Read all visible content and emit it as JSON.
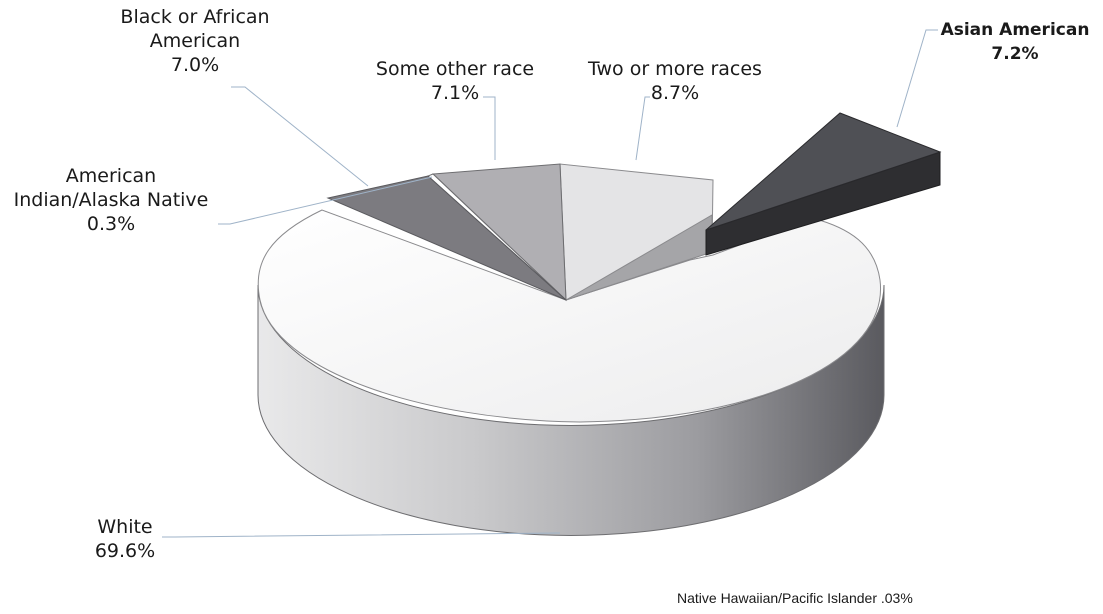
{
  "chart_data": {
    "type": "pie",
    "style": "3d-exploded",
    "slices": [
      {
        "name": "White",
        "value": 69.6,
        "label_value": "69.6%",
        "color": "#f3f3f3"
      },
      {
        "name": "Two or more races",
        "value": 8.7,
        "label_value": "8.7%",
        "color": "#e4e4e6"
      },
      {
        "name": "Some other race",
        "value": 7.1,
        "label_value": "7.1%",
        "color": "#b0afb3"
      },
      {
        "name": "Black or African American",
        "value": 7.0,
        "label_value": "7.0%",
        "color": "#7c7b80"
      },
      {
        "name": "American Indian/Alaska Native",
        "value": 0.3,
        "label_value": "0.3%",
        "color": "#ffffff"
      },
      {
        "name": "Asian American",
        "value": 7.2,
        "label_value": "7.2%",
        "color": "#4a4b50",
        "exploded": true
      },
      {
        "name": "Native Hawaiian/Pacific Islander",
        "value": 0.03,
        "label_value": ".03%"
      }
    ]
  },
  "labels": {
    "black_line1": "Black or African",
    "black_line2": "American",
    "black_value": "7.0%",
    "other_line1": "Some other race",
    "other_value": "7.1%",
    "two_line1": "Two or more races",
    "two_value": "8.7%",
    "asian_line1": "Asian American",
    "asian_value": "7.2%",
    "amind_line1": "American",
    "amind_line2": "Indian/Alaska Native",
    "amind_value": "0.3%",
    "white_line1": "White",
    "white_value": "69.6%",
    "nhpi_note": "Native Hawaiian/Pacific Islander .03%"
  }
}
